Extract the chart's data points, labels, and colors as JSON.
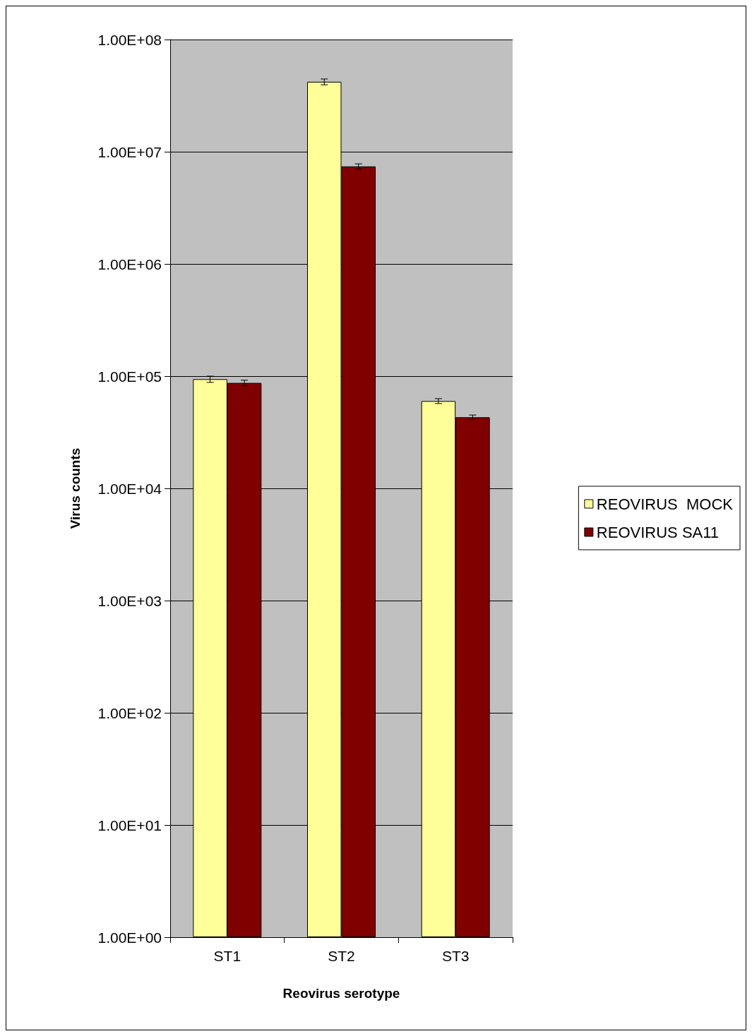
{
  "chart_data": {
    "type": "bar",
    "xlabel": "Reovirus serotype",
    "ylabel": "Virus counts",
    "categories": [
      "ST1",
      "ST2",
      "ST3"
    ],
    "series": [
      {
        "name": "REOVIRUS  MOCK",
        "color": "#ffff99",
        "values": [
          94000,
          42000000,
          60000
        ],
        "errors": [
          6000,
          2500000,
          3000
        ]
      },
      {
        "name": "REOVIRUS SA11",
        "color": "#800000",
        "values": [
          87000,
          7400000,
          43000
        ],
        "errors": [
          5000,
          400000,
          2000
        ]
      }
    ],
    "log": "y",
    "ylim": [
      1,
      100000000
    ],
    "yticks": [
      {
        "value": 1,
        "label": "1.00E+00"
      },
      {
        "value": 10,
        "label": "1.00E+01"
      },
      {
        "value": 100,
        "label": "1.00E+02"
      },
      {
        "value": 1000,
        "label": "1.00E+03"
      },
      {
        "value": 10000,
        "label": "1.00E+04"
      },
      {
        "value": 100000,
        "label": "1.00E+05"
      },
      {
        "value": 1000000,
        "label": "1.00E+06"
      },
      {
        "value": 10000000,
        "label": "1.00E+07"
      },
      {
        "value": 100000000,
        "label": "1.00E+08"
      }
    ],
    "grid": "y",
    "legend": "right"
  }
}
